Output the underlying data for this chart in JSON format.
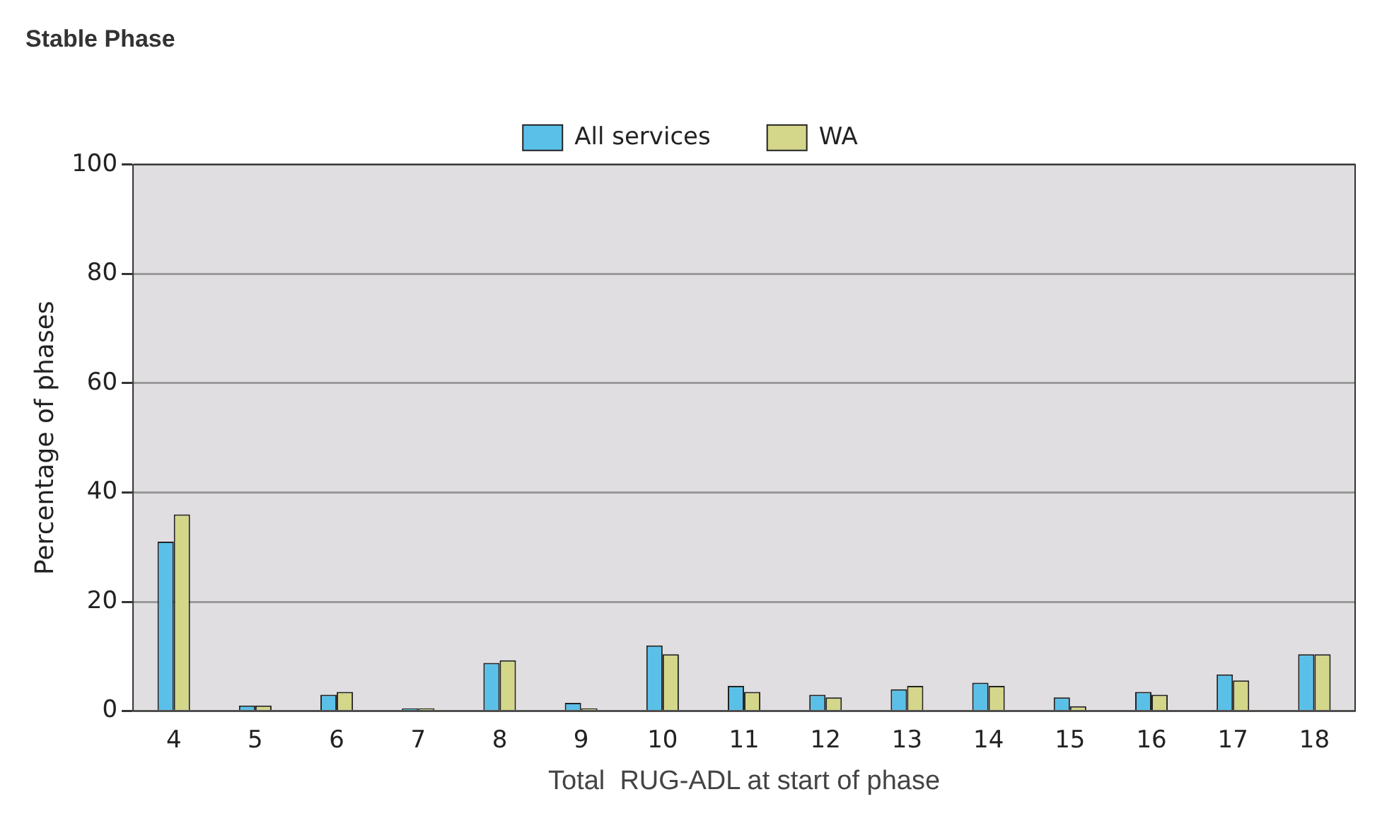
{
  "chart_data": {
    "type": "bar",
    "title": "Stable Phase",
    "xlabel": "Total  RUG-ADL at start of phase",
    "ylabel": "Percentage of phases",
    "categories": [
      "4",
      "5",
      "6",
      "7",
      "8",
      "9",
      "10",
      "11",
      "12",
      "13",
      "14",
      "15",
      "16",
      "17",
      "18"
    ],
    "series": [
      {
        "name": "All services",
        "color": "#5bc0e8",
        "values": [
          31,
          1,
          3,
          0.5,
          8.8,
          1.5,
          12,
          4.6,
          3,
          4,
          5.2,
          2.5,
          3.5,
          6.7,
          10.4
        ]
      },
      {
        "name": "WA",
        "color": "#d4d68a",
        "values": [
          36,
          1,
          3.5,
          0.5,
          9.3,
          0.5,
          10.4,
          3.5,
          2.5,
          4.6,
          4.6,
          0.9,
          3,
          5.6,
          10.4
        ]
      }
    ],
    "ylim": [
      0,
      100
    ],
    "yticks": [
      0,
      20,
      40,
      60,
      80,
      100
    ],
    "grid": "y",
    "legend": "top"
  }
}
